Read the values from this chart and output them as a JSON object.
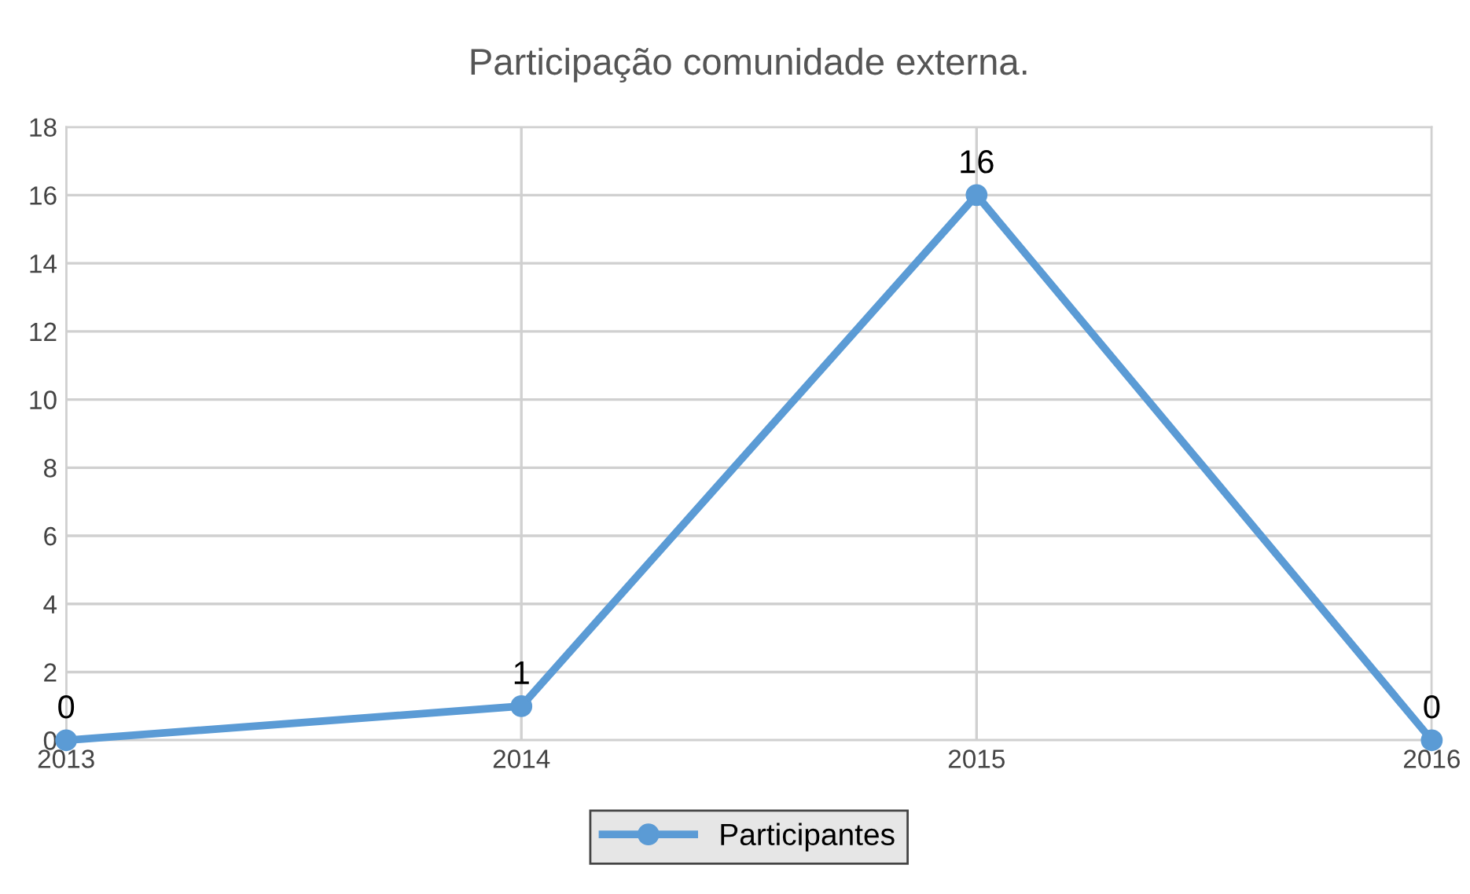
{
  "chart_data": {
    "type": "line",
    "title": "Participação comunidade externa.",
    "categories": [
      "2013",
      "2014",
      "2015",
      "2016"
    ],
    "series": [
      {
        "name": "Participantes",
        "color": "#5b9bd5",
        "values": [
          0,
          1,
          16,
          0
        ]
      }
    ],
    "ylim": [
      0,
      18
    ],
    "yticks": [
      0,
      2,
      4,
      6,
      8,
      10,
      12,
      14,
      16,
      18
    ],
    "grid": true,
    "legend": "bottom",
    "marker": "circle",
    "line_style": "solid",
    "data_labels": true
  }
}
